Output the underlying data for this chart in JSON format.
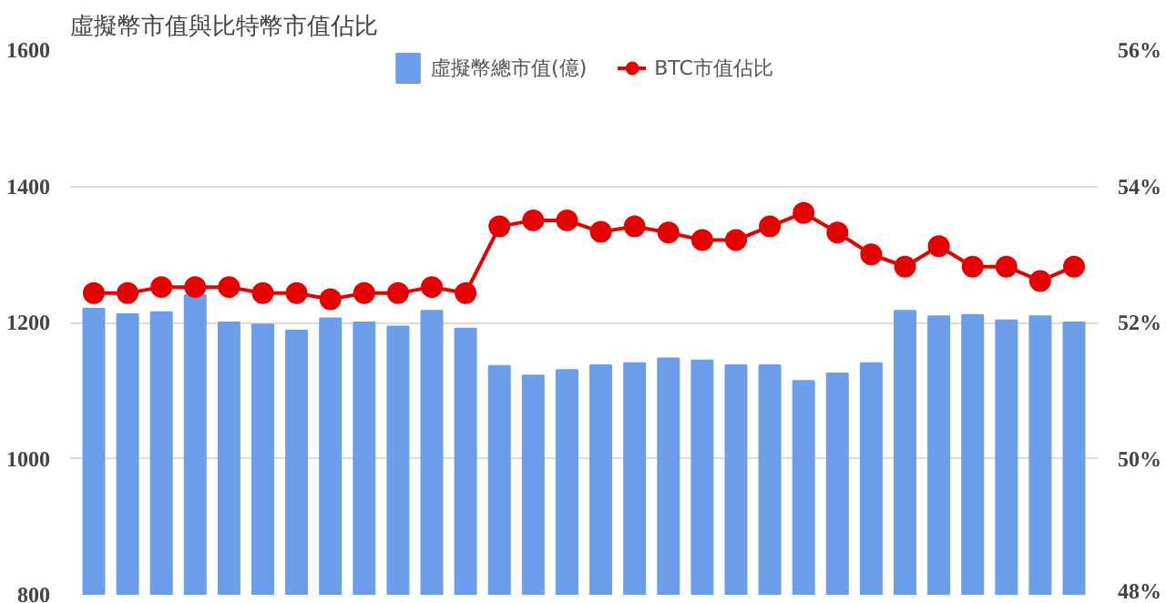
{
  "chart_data": {
    "type": "bar",
    "title": "虛擬幣市值與比特幣市值佔比",
    "categories": [
      null,
      null,
      null,
      null,
      null,
      null,
      null,
      null,
      null,
      null,
      null,
      null,
      null,
      null,
      null,
      null,
      null,
      null,
      null,
      null,
      null,
      null,
      null,
      null,
      null,
      null,
      null,
      null,
      null,
      null
    ],
    "series": [
      {
        "name": "虛擬幣總市值(億)",
        "color": "#6d9eeb",
        "values": [
          1220,
          1212,
          1215,
          1240,
          1200,
          1197,
          1188,
          1206,
          1200,
          1194,
          1217,
          1191,
          1136,
          1122,
          1130,
          1137,
          1140,
          1147,
          1144,
          1137,
          1137,
          1114,
          1125,
          1140,
          1217,
          1209,
          1211,
          1203,
          1209,
          1200
        ]
      },
      {
        "name": "BTC市值佔比",
        "type": "line",
        "axis": "y2",
        "color": "#e60000",
        "marker": "circle",
        "values": [
          52.43,
          52.43,
          52.52,
          52.52,
          52.52,
          52.43,
          52.43,
          52.34,
          52.43,
          52.43,
          52.52,
          52.43,
          53.41,
          53.5,
          53.5,
          53.33,
          53.41,
          53.32,
          53.21,
          53.21,
          53.41,
          53.61,
          53.32,
          53.0,
          52.82,
          53.12,
          52.82,
          52.82,
          52.61,
          52.82
        ]
      }
    ],
    "ylim": [
      800,
      1600
    ],
    "yticks": [
      800,
      1000,
      1200,
      1400,
      1600
    ],
    "y2lim": [
      48,
      56
    ],
    "y2ticks": [
      {
        "value": 48,
        "label": "48%"
      },
      {
        "value": 50,
        "label": "50%"
      },
      {
        "value": 52,
        "label": "52%"
      },
      {
        "value": 54,
        "label": "54%"
      },
      {
        "value": 56,
        "label": "56%"
      }
    ],
    "grid": "y",
    "legend": "top",
    "tick_labels": "y"
  }
}
